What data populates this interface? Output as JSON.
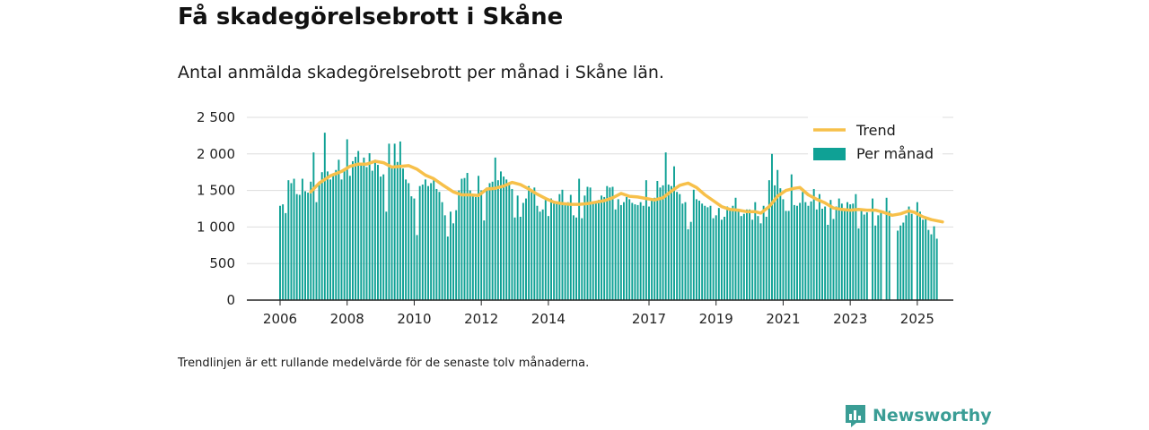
{
  "header": {
    "title": "Få skadegörelsebrott i Skåne",
    "subtitle": "Antal anmälda skadegörelsebrott per månad i Skåne län."
  },
  "footnote": "Trendlinjen är ett rullande medelvärde för de senaste tolv månaderna.",
  "brand": {
    "name": "Newsworthy",
    "icon": "newsworthy-logo-icon"
  },
  "colors": {
    "bars": "#0fa195",
    "trend": "#f7c04a",
    "grid": "#dddddd",
    "axis": "#222222",
    "brand": "#3a9d95"
  },
  "chart_data": {
    "type": "bar",
    "x_start": "2006-01",
    "x_end": "2025-02",
    "ylim": [
      0,
      2500
    ],
    "yticks": [
      {
        "v": 0,
        "label": "0"
      },
      {
        "v": 500,
        "label": "500"
      },
      {
        "v": 1000,
        "label": "1 000"
      },
      {
        "v": 1500,
        "label": "1 500"
      },
      {
        "v": 2000,
        "label": "2 000"
      },
      {
        "v": 2500,
        "label": "2 500"
      }
    ],
    "xticks": [
      {
        "v": 2006,
        "label": "2006"
      },
      {
        "v": 2008,
        "label": "2008"
      },
      {
        "v": 2010,
        "label": "2010"
      },
      {
        "v": 2012,
        "label": "2012"
      },
      {
        "v": 2014,
        "label": "2014"
      },
      {
        "v": 2017,
        "label": "2017"
      },
      {
        "v": 2019,
        "label": "2019"
      },
      {
        "v": 2021,
        "label": "2021"
      },
      {
        "v": 2023,
        "label": "2023"
      },
      {
        "v": 2025,
        "label": "2025"
      }
    ],
    "legend": {
      "position": "top-right",
      "trend": "Trend",
      "bars": "Per månad"
    },
    "series": [
      {
        "name": "Per månad",
        "values": [
          1290,
          1310,
          1190,
          1640,
          1600,
          1660,
          1450,
          1440,
          1660,
          1490,
          1470,
          1620,
          2020,
          1340,
          1600,
          1750,
          2290,
          1760,
          1650,
          1700,
          1780,
          1920,
          1650,
          1800,
          2200,
          1700,
          1900,
          1960,
          2040,
          1880,
          1950,
          1820,
          2010,
          1770,
          1920,
          1850,
          1690,
          1720,
          1210,
          2140,
          1830,
          2140,
          1890,
          2170,
          1800,
          1650,
          1600,
          1420,
          1390,
          890,
          1560,
          1580,
          1650,
          1560,
          1600,
          1640,
          1520,
          1480,
          1340,
          1160,
          870,
          1210,
          1050,
          1230,
          1500,
          1660,
          1670,
          1740,
          1500,
          1430,
          1410,
          1700,
          1500,
          1090,
          1540,
          1600,
          1620,
          1950,
          1640,
          1760,
          1690,
          1650,
          1610,
          1520,
          1130,
          1430,
          1140,
          1330,
          1390,
          1560,
          1500,
          1540,
          1290,
          1210,
          1240,
          1370,
          1150,
          1390,
          1320,
          1330,
          1450,
          1510,
          1300,
          1340,
          1440,
          1160,
          1130,
          1660,
          1120,
          1430,
          1550,
          1540,
          1330,
          1340,
          1370,
          1430,
          1410,
          1560,
          1540,
          1550,
          1240,
          1380,
          1300,
          1340,
          1410,
          1380,
          1330,
          1310,
          1300,
          1340,
          1290,
          1640,
          1280,
          1370,
          1400,
          1630,
          1540,
          1570,
          2020,
          1580,
          1560,
          1830,
          1480,
          1450,
          1320,
          1340,
          970,
          1070,
          1510,
          1380,
          1360,
          1320,
          1290,
          1270,
          1290,
          1120,
          1160,
          1260,
          1100,
          1140,
          1280,
          1230,
          1290,
          1400,
          1220,
          1150,
          1180,
          1240,
          1240,
          1100,
          1340,
          1150,
          1050,
          1290,
          1140,
          1640,
          2000,
          1570,
          1780,
          1530,
          1380,
          1220,
          1220,
          1720,
          1300,
          1290,
          1330,
          1480,
          1340,
          1290,
          1350,
          1520,
          1240,
          1450,
          1250,
          1280,
          1030,
          1370,
          1110,
          1280,
          1390,
          1320,
          1240,
          1340,
          1310,
          1320,
          1450,
          980,
          1250,
          1170,
          1200,
          0,
          1390,
          1020,
          1160,
          1230,
          0,
          1400,
          1220,
          0,
          0,
          950,
          1020,
          1060,
          1160,
          1280,
          1180,
          0,
          1340,
          1210,
          1100,
          1140,
          960,
          900,
          1010,
          840
        ]
      },
      {
        "name": "Trend",
        "start_index": 11,
        "points": [
          [
            11,
            1480
          ],
          [
            14,
            1600
          ],
          [
            18,
            1700
          ],
          [
            22,
            1760
          ],
          [
            25,
            1830
          ],
          [
            28,
            1860
          ],
          [
            31,
            1860
          ],
          [
            34,
            1900
          ],
          [
            37,
            1880
          ],
          [
            40,
            1820
          ],
          [
            43,
            1830
          ],
          [
            46,
            1840
          ],
          [
            49,
            1790
          ],
          [
            52,
            1710
          ],
          [
            55,
            1660
          ],
          [
            58,
            1580
          ],
          [
            62,
            1480
          ],
          [
            65,
            1440
          ],
          [
            68,
            1440
          ],
          [
            71,
            1430
          ],
          [
            74,
            1520
          ],
          [
            77,
            1530
          ],
          [
            80,
            1560
          ],
          [
            83,
            1610
          ],
          [
            86,
            1580
          ],
          [
            89,
            1520
          ],
          [
            92,
            1450
          ],
          [
            95,
            1390
          ],
          [
            98,
            1340
          ],
          [
            101,
            1320
          ],
          [
            104,
            1310
          ],
          [
            107,
            1310
          ],
          [
            110,
            1320
          ],
          [
            113,
            1340
          ],
          [
            116,
            1360
          ],
          [
            119,
            1400
          ],
          [
            122,
            1460
          ],
          [
            125,
            1420
          ],
          [
            128,
            1410
          ],
          [
            131,
            1390
          ],
          [
            134,
            1370
          ],
          [
            137,
            1400
          ],
          [
            140,
            1490
          ],
          [
            143,
            1570
          ],
          [
            146,
            1600
          ],
          [
            149,
            1540
          ],
          [
            152,
            1440
          ],
          [
            155,
            1360
          ],
          [
            158,
            1280
          ],
          [
            161,
            1240
          ],
          [
            164,
            1230
          ],
          [
            167,
            1210
          ],
          [
            170,
            1210
          ],
          [
            172,
            1190
          ],
          [
            175,
            1280
          ],
          [
            178,
            1420
          ],
          [
            181,
            1500
          ],
          [
            184,
            1530
          ],
          [
            186,
            1540
          ],
          [
            189,
            1440
          ],
          [
            192,
            1380
          ],
          [
            195,
            1330
          ],
          [
            198,
            1260
          ],
          [
            201,
            1240
          ],
          [
            204,
            1230
          ],
          [
            207,
            1240
          ],
          [
            210,
            1230
          ],
          [
            213,
            1230
          ],
          [
            216,
            1200
          ],
          [
            219,
            1160
          ],
          [
            222,
            1180
          ],
          [
            225,
            1220
          ],
          [
            227,
            1200
          ],
          [
            230,
            1140
          ],
          [
            233,
            1100
          ],
          [
            237,
            1070
          ]
        ]
      }
    ]
  }
}
